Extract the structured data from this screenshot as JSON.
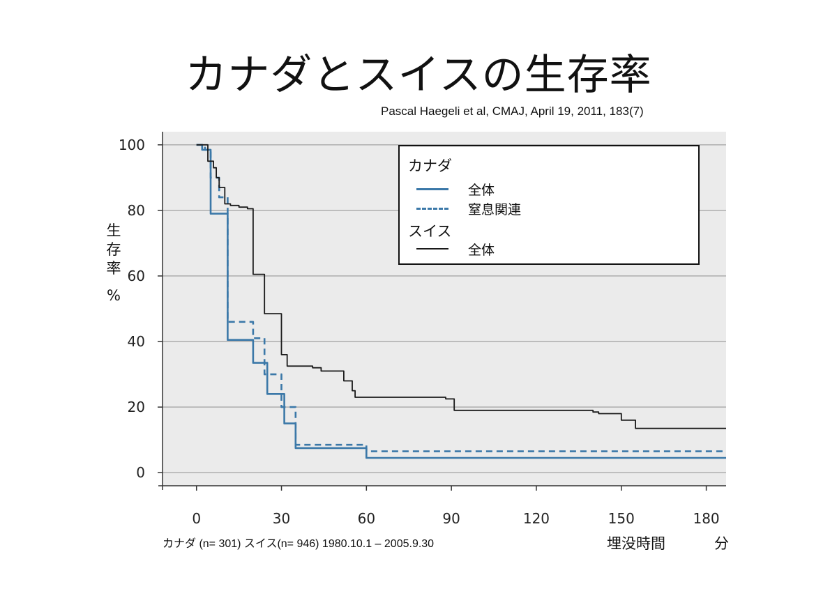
{
  "title": "カナダとスイスの生存率",
  "citation": "Pascal Haegeli et al, CMAJ, April 19, 2011, 183(7)",
  "footnote": "カナダ (n= 301) スイス(n= 946) 1980.10.1 – 2005.9.30",
  "chart_data": {
    "type": "line",
    "ylabel": "生存率",
    "yunit": "%",
    "xlabel": "埋没時間",
    "xunit": "分",
    "xlim": [
      -12,
      187
    ],
    "ylim": [
      -4,
      104
    ],
    "xticks": [
      0,
      30,
      60,
      90,
      120,
      150,
      180
    ],
    "yticks": [
      0,
      20,
      40,
      60,
      80,
      100
    ],
    "grid": "horizontal",
    "legend_position": "top-right",
    "legend_groups": [
      {
        "label": "カナダ",
        "entries": [
          {
            "series": 0,
            "label": "全体"
          },
          {
            "series": 1,
            "label": "窒息関連"
          }
        ]
      },
      {
        "label": "スイス",
        "entries": [
          {
            "series": 2,
            "label": "全体"
          }
        ]
      }
    ],
    "series": [
      {
        "name": "全体",
        "group": "カナダ",
        "color": "#3b78a8",
        "dash": "solid",
        "step": true,
        "x": [
          0,
          2,
          5,
          11,
          18,
          20,
          25,
          31,
          35,
          58,
          60,
          187
        ],
        "y": [
          100,
          98.5,
          79,
          40.5,
          40.5,
          33.5,
          24,
          15,
          7.5,
          7.5,
          4.5,
          4.5
        ]
      },
      {
        "name": "窒息関連",
        "group": "カナダ",
        "color": "#3b78a8",
        "dash": "dashed",
        "step": true,
        "x": [
          0,
          3,
          5,
          8,
          11,
          17,
          20,
          24,
          28,
          30,
          35,
          57,
          60,
          187
        ],
        "y": [
          100,
          98.5,
          90,
          84,
          46,
          46,
          41,
          30,
          30,
          20,
          8.5,
          8.5,
          6.5,
          6.5
        ]
      },
      {
        "name": "全体",
        "group": "スイス",
        "color": "#1a1a1a",
        "dash": "solid",
        "step": true,
        "x": [
          0,
          4,
          6,
          7,
          8,
          10,
          12,
          15,
          18,
          20,
          24,
          27,
          30,
          32,
          35,
          41,
          44,
          48,
          52,
          55,
          56,
          60,
          80,
          88,
          91,
          125,
          140,
          142,
          150,
          155,
          187
        ],
        "y": [
          100,
          95,
          93,
          90,
          87,
          82,
          81.5,
          81,
          80.5,
          60.5,
          48.5,
          48.5,
          36,
          32.5,
          32.5,
          32,
          31,
          31,
          28,
          25,
          23,
          23,
          23,
          22.5,
          19,
          19,
          18.5,
          18,
          16,
          13.5,
          13.5
        ]
      }
    ]
  }
}
